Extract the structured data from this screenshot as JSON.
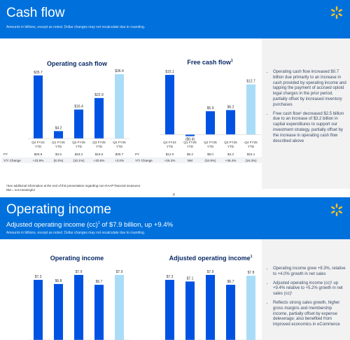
{
  "cash_flow": {
    "title": "Cash flow",
    "subtitle": "Amounts in billions, except as noted.  Dollar changes may not recalculate due to rounding.",
    "chart_data": [
      {
        "type": "bar",
        "title": "Operating cash flow",
        "categories": [
          "Q4 FY24 YTD",
          "Q1 FY25 YTD",
          "Q2 FY25 YTD",
          "Q3 FY25 YTD",
          "Q4 FY25 YTD"
        ],
        "values": [
          35.7,
          4.2,
          16.4,
          22.9,
          36.4
        ],
        "value_labels": [
          "$35.7",
          "$4.2",
          "$16.4",
          "$22.9",
          "$36.4"
        ],
        "ylim": [
          0,
          38
        ]
      },
      {
        "type": "bar",
        "title": "Free cash flow",
        "title_sup": "1",
        "categories": [
          "Q4 FY24 YTD",
          "Q1 FY25 YTD",
          "Q2 FY25 YTD",
          "Q3 FY25 YTD",
          "Q4 FY25 YTD"
        ],
        "values": [
          15.1,
          -0.4,
          5.9,
          6.2,
          12.7
        ],
        "value_labels": [
          "$15.1",
          "($0.4)",
          "$5.9",
          "$6.2",
          "$12.7"
        ],
        "ylim": [
          -1,
          16
        ]
      }
    ],
    "table_left": {
      "rows": [
        {
          "label": "PY",
          "values": [
            "$28.8",
            "$4.6",
            "$18.2",
            "$19.0",
            "$35.7"
          ]
        },
        {
          "label": "Y/Y Change",
          "values": [
            "+23.9%",
            "(8.3%)",
            "(10.1%)",
            "+20.5%",
            "+2.0%"
          ]
        }
      ]
    },
    "table_right": {
      "rows": [
        {
          "label": "PY",
          "values": [
            "$12.0",
            "$0.2",
            "$9.0",
            "$4.3",
            "$15.1"
          ]
        },
        {
          "label": "Y/Y Change",
          "values": [
            "+26.2%",
            "NM",
            "(34.9%)",
            "+45.4%",
            "(16.3%)"
          ]
        }
      ]
    },
    "bullets": [
      "Operating cash flow increased $0.7 billion due primarily to an increase in cash provided by operating income and lapping the payment of accrued opioid legal charges in the prior period, partially offset by increased inventory purchases",
      "Free cash flow¹ decreased $2.5 billion due to an increase of $3.2 billion in capital expenditures to support our investment strategy, partially offset by the increase in operating cash flow described above"
    ],
    "footnote1": "¹See additional information at the end of this presentation regarding non-GAAP financial measures.",
    "footnote2": "NM = not meaningful",
    "page_number": "8"
  },
  "operating_income": {
    "title": "Operating income",
    "headline_pre": "Adjusted operating income (cc)",
    "headline_sup": "1",
    "headline_post": " of $7.9 billion, up +9.4%",
    "subtitle": "Amounts in billions, except as noted.  Dollar changes may not recalculate due to rounding.",
    "chart_data": [
      {
        "type": "bar",
        "title": "Operating income",
        "values": [
          7.3,
          6.8,
          7.9,
          6.7,
          7.9
        ],
        "value_labels": [
          "$7.3",
          "$6.8",
          "$7.9",
          "$6.7",
          "$7.9"
        ],
        "ylim": [
          0,
          9
        ]
      },
      {
        "type": "bar",
        "title": "Adjusted operating income",
        "title_sup": "1",
        "values": [
          7.3,
          7.1,
          7.9,
          6.7,
          7.8
        ],
        "value_labels": [
          "$7.3",
          "$7.1",
          "$7.9",
          "$6.7",
          "$7.8"
        ],
        "ylim": [
          0,
          9
        ]
      }
    ],
    "bullets": [
      "Operating income grew +8.3%, relative to +4.0% growth in net sales",
      "Adjusted operating income (cc)¹ up +9.4% relative to +5.2% growth in net sales (cc)¹",
      "Reflects strong sales growth, higher gross margins and membership income, partially offset by expense deleverage; also benefited from improved economics in eCommerce"
    ]
  },
  "colors": {
    "brand_blue": "#0071dc",
    "bar_blue": "#0053e2",
    "bar_light": "#a9ddf7",
    "spark_yellow": "#ffc220"
  }
}
